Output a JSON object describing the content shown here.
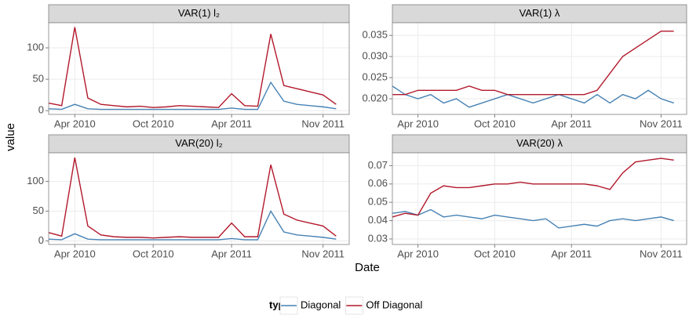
{
  "y_label": "value",
  "x_label": "Date",
  "legend_title": "type",
  "chart_data": [
    {
      "type": "line",
      "title": "VAR(1) l₂",
      "x": [
        "2010-02",
        "2010-03",
        "2010-04",
        "2010-05",
        "2010-06",
        "2010-07",
        "2010-08",
        "2010-09",
        "2010-10",
        "2010-11",
        "2010-12",
        "2011-01",
        "2011-02",
        "2011-03",
        "2011-04",
        "2011-05",
        "2011-06",
        "2011-07",
        "2011-08",
        "2011-09",
        "2011-10",
        "2011-11",
        "2011-12"
      ],
      "xlim": [
        "2010-02",
        "2012-01"
      ],
      "xticks": [
        {
          "value": "2010-04",
          "label": "Apr 2010"
        },
        {
          "value": "2010-10",
          "label": "Oct 2010"
        },
        {
          "value": "2011-04",
          "label": "Apr 2011"
        },
        {
          "value": "2011-11",
          "label": "Nov 2011"
        }
      ],
      "ylim": [
        -6,
        140
      ],
      "yticks": [
        0,
        50,
        100
      ],
      "grid": true,
      "series": [
        {
          "name": "Diagonal",
          "color": "#4682b4",
          "values": [
            3,
            2,
            10,
            3,
            2,
            2,
            2,
            2,
            2,
            2,
            2,
            2,
            2,
            2,
            4,
            2,
            2,
            45,
            15,
            10,
            8,
            6,
            3
          ]
        },
        {
          "name": "Off Diagonal",
          "color": "#b2182b",
          "values": [
            12,
            8,
            133,
            20,
            10,
            8,
            6,
            7,
            5,
            6,
            8,
            7,
            6,
            5,
            27,
            8,
            7,
            122,
            40,
            35,
            30,
            25,
            10
          ]
        }
      ]
    },
    {
      "type": "line",
      "title": "VAR(1) λ",
      "x": [
        "2010-02",
        "2010-03",
        "2010-04",
        "2010-05",
        "2010-06",
        "2010-07",
        "2010-08",
        "2010-09",
        "2010-10",
        "2010-11",
        "2010-12",
        "2011-01",
        "2011-02",
        "2011-03",
        "2011-04",
        "2011-05",
        "2011-06",
        "2011-07",
        "2011-08",
        "2011-09",
        "2011-10",
        "2011-11",
        "2011-12"
      ],
      "xlim": [
        "2010-02",
        "2012-01"
      ],
      "xticks": [
        {
          "value": "2010-04",
          "label": "Apr 2010"
        },
        {
          "value": "2010-10",
          "label": "Oct 2010"
        },
        {
          "value": "2011-04",
          "label": "Apr 2011"
        },
        {
          "value": "2011-11",
          "label": "Nov 2011"
        }
      ],
      "ylim": [
        0.0163,
        0.038
      ],
      "yticks": [
        {
          "value": 0.02,
          "label": "0.020"
        },
        {
          "value": 0.025,
          "label": "0.025"
        },
        {
          "value": 0.03,
          "label": "0.030"
        },
        {
          "value": 0.035,
          "label": "0.035"
        }
      ],
      "grid": true,
      "series": [
        {
          "name": "Diagonal",
          "color": "#4682b4",
          "values": [
            0.023,
            0.021,
            0.02,
            0.021,
            0.019,
            0.02,
            0.018,
            0.019,
            0.02,
            0.021,
            0.02,
            0.019,
            0.02,
            0.021,
            0.02,
            0.019,
            0.021,
            0.019,
            0.021,
            0.02,
            0.022,
            0.02,
            0.019
          ]
        },
        {
          "name": "Off Diagonal",
          "color": "#b2182b",
          "values": [
            0.021,
            0.021,
            0.022,
            0.022,
            0.022,
            0.022,
            0.023,
            0.022,
            0.022,
            0.021,
            0.021,
            0.021,
            0.021,
            0.021,
            0.021,
            0.021,
            0.022,
            0.026,
            0.03,
            0.032,
            0.034,
            0.036,
            0.036
          ]
        }
      ]
    },
    {
      "type": "line",
      "title": "VAR(20) l₂",
      "x": [
        "2010-02",
        "2010-03",
        "2010-04",
        "2010-05",
        "2010-06",
        "2010-07",
        "2010-08",
        "2010-09",
        "2010-10",
        "2010-11",
        "2010-12",
        "2011-01",
        "2011-02",
        "2011-03",
        "2011-04",
        "2011-05",
        "2011-06",
        "2011-07",
        "2011-08",
        "2011-09",
        "2011-10",
        "2011-11",
        "2011-12"
      ],
      "xlim": [
        "2010-02",
        "2012-01"
      ],
      "xticks": [
        {
          "value": "2010-04",
          "label": "Apr 2010"
        },
        {
          "value": "2010-10",
          "label": "Oct 2010"
        },
        {
          "value": "2011-04",
          "label": "Apr 2011"
        },
        {
          "value": "2011-11",
          "label": "Nov 2011"
        }
      ],
      "ylim": [
        -6,
        148
      ],
      "yticks": [
        0,
        50,
        100
      ],
      "grid": true,
      "series": [
        {
          "name": "Diagonal",
          "color": "#4682b4",
          "values": [
            3,
            2,
            12,
            3,
            2,
            2,
            2,
            2,
            2,
            2,
            2,
            2,
            2,
            2,
            4,
            2,
            2,
            50,
            15,
            10,
            8,
            6,
            3
          ]
        },
        {
          "name": "Off Diagonal",
          "color": "#b2182b",
          "values": [
            14,
            8,
            140,
            25,
            10,
            7,
            6,
            6,
            5,
            6,
            7,
            6,
            6,
            6,
            30,
            7,
            7,
            128,
            45,
            35,
            30,
            25,
            8
          ]
        }
      ]
    },
    {
      "type": "line",
      "title": "VAR(20) λ",
      "x": [
        "2010-02",
        "2010-03",
        "2010-04",
        "2010-05",
        "2010-06",
        "2010-07",
        "2010-08",
        "2010-09",
        "2010-10",
        "2010-11",
        "2010-12",
        "2011-01",
        "2011-02",
        "2011-03",
        "2011-04",
        "2011-05",
        "2011-06",
        "2011-07",
        "2011-08",
        "2011-09",
        "2011-10",
        "2011-11",
        "2011-12"
      ],
      "xlim": [
        "2010-02",
        "2012-01"
      ],
      "xticks": [
        {
          "value": "2010-04",
          "label": "Apr 2010"
        },
        {
          "value": "2010-10",
          "label": "Oct 2010"
        },
        {
          "value": "2011-04",
          "label": "Apr 2011"
        },
        {
          "value": "2011-11",
          "label": "Nov 2011"
        }
      ],
      "ylim": [
        0.027,
        0.077
      ],
      "yticks": [
        0.03,
        0.04,
        0.05,
        0.06,
        0.07
      ],
      "grid": true,
      "series": [
        {
          "name": "Diagonal",
          "color": "#4682b4",
          "values": [
            0.044,
            0.045,
            0.043,
            0.046,
            0.042,
            0.043,
            0.042,
            0.041,
            0.043,
            0.042,
            0.041,
            0.04,
            0.041,
            0.036,
            0.037,
            0.038,
            0.037,
            0.04,
            0.041,
            0.04,
            0.041,
            0.042,
            0.04
          ]
        },
        {
          "name": "Off Diagonal",
          "color": "#b2182b",
          "values": [
            0.042,
            0.044,
            0.043,
            0.055,
            0.059,
            0.058,
            0.058,
            0.059,
            0.06,
            0.06,
            0.061,
            0.06,
            0.06,
            0.06,
            0.06,
            0.06,
            0.059,
            0.057,
            0.066,
            0.072,
            0.073,
            0.074,
            0.073
          ]
        }
      ]
    }
  ]
}
